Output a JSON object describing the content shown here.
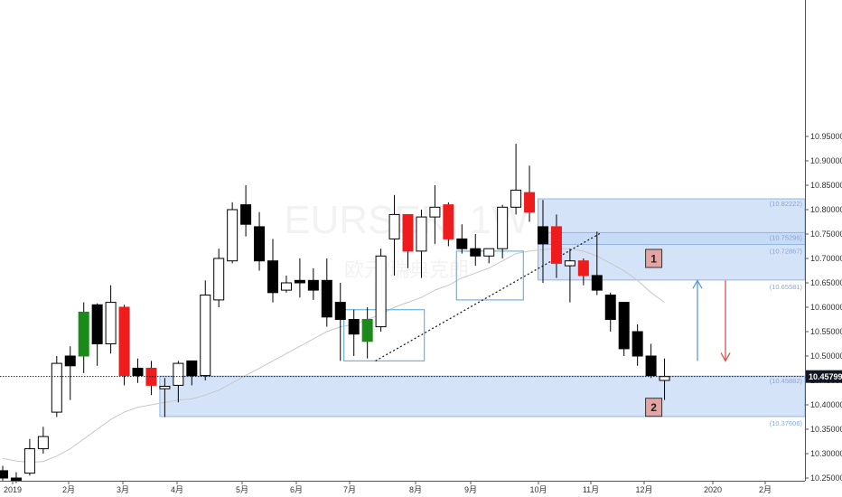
{
  "chart_data": {
    "type": "candlestick",
    "symbol_watermark": "EURSEK, 1W",
    "watermark_sub": "欧元/瑞典克朗",
    "y_ticks": [
      "10.95000",
      "10.90000",
      "10.85000",
      "10.80000",
      "10.75000",
      "10.70000",
      "10.65000",
      "10.60000",
      "10.55000",
      "10.50000",
      "10.45000",
      "10.40000",
      "10.35000",
      "10.30000",
      "10.25000"
    ],
    "x_ticks": [
      "2019",
      "2月",
      "3月",
      "4月",
      "5月",
      "6月",
      "7月",
      "8月",
      "9月",
      "10月",
      "11月",
      "12月",
      "2020",
      "2月"
    ],
    "current_price": "10.45799",
    "colors": {
      "up": "#ffffff",
      "down": "#000000",
      "highlight_up": "#1a8a1a",
      "highlight_down": "#ee1c1c",
      "zone_fill": "#c7d9f5",
      "zone_border": "#93b4e4",
      "ma_line": "#c8c8c8",
      "up_arrow": "#5b9bd5",
      "down_arrow": "#d9534f",
      "box_fill": "#e4a4a4"
    },
    "candles": [
      {
        "o": 10.265,
        "h": 10.275,
        "l": 10.245,
        "c": 10.25,
        "style": "down"
      },
      {
        "o": 10.25,
        "h": 10.262,
        "l": 10.24,
        "c": 10.245,
        "style": "down"
      },
      {
        "o": 10.26,
        "h": 10.33,
        "l": 10.255,
        "c": 10.31,
        "style": "up"
      },
      {
        "o": 10.31,
        "h": 10.355,
        "l": 10.3,
        "c": 10.335,
        "style": "up"
      },
      {
        "o": 10.385,
        "h": 10.5,
        "l": 10.375,
        "c": 10.485,
        "style": "up"
      },
      {
        "o": 10.48,
        "h": 10.52,
        "l": 10.41,
        "c": 10.5,
        "style": "down"
      },
      {
        "o": 10.5,
        "h": 10.61,
        "l": 10.465,
        "c": 10.59,
        "style": "highlight_up"
      },
      {
        "o": 10.605,
        "h": 10.608,
        "l": 10.48,
        "c": 10.525,
        "style": "down"
      },
      {
        "o": 10.525,
        "h": 10.645,
        "l": 10.505,
        "c": 10.61,
        "style": "up"
      },
      {
        "o": 10.6,
        "h": 10.605,
        "l": 10.44,
        "c": 10.46,
        "style": "highlight_down"
      },
      {
        "o": 10.46,
        "h": 10.495,
        "l": 10.445,
        "c": 10.475,
        "style": "down"
      },
      {
        "o": 10.475,
        "h": 10.49,
        "l": 10.42,
        "c": 10.44,
        "style": "highlight_down"
      },
      {
        "o": 10.433,
        "h": 10.455,
        "l": 10.375,
        "c": 10.438,
        "style": "up"
      },
      {
        "o": 10.44,
        "h": 10.49,
        "l": 10.405,
        "c": 10.485,
        "style": "up"
      },
      {
        "o": 10.49,
        "h": 10.49,
        "l": 10.44,
        "c": 10.46,
        "style": "down"
      },
      {
        "o": 10.46,
        "h": 10.655,
        "l": 10.45,
        "c": 10.625,
        "style": "up"
      },
      {
        "o": 10.615,
        "h": 10.72,
        "l": 10.6,
        "c": 10.7,
        "style": "up"
      },
      {
        "o": 10.695,
        "h": 10.815,
        "l": 10.69,
        "c": 10.8,
        "style": "up"
      },
      {
        "o": 10.81,
        "h": 10.85,
        "l": 10.745,
        "c": 10.77,
        "style": "down"
      },
      {
        "o": 10.765,
        "h": 10.795,
        "l": 10.675,
        "c": 10.695,
        "style": "down"
      },
      {
        "o": 10.695,
        "h": 10.74,
        "l": 10.61,
        "c": 10.63,
        "style": "down"
      },
      {
        "o": 10.635,
        "h": 10.665,
        "l": 10.63,
        "c": 10.65,
        "style": "up"
      },
      {
        "o": 10.65,
        "h": 10.7,
        "l": 10.62,
        "c": 10.655,
        "style": "down"
      },
      {
        "o": 10.655,
        "h": 10.68,
        "l": 10.615,
        "c": 10.635,
        "style": "down"
      },
      {
        "o": 10.655,
        "h": 10.7,
        "l": 10.56,
        "c": 10.58,
        "style": "down"
      },
      {
        "o": 10.61,
        "h": 10.65,
        "l": 10.49,
        "c": 10.575,
        "style": "down"
      },
      {
        "o": 10.575,
        "h": 10.595,
        "l": 10.5,
        "c": 10.545,
        "style": "down"
      },
      {
        "o": 10.575,
        "h": 10.6,
        "l": 10.495,
        "c": 10.53,
        "style": "highlight_up"
      },
      {
        "o": 10.56,
        "h": 10.72,
        "l": 10.55,
        "c": 10.705,
        "style": "up"
      },
      {
        "o": 10.74,
        "h": 10.83,
        "l": 10.665,
        "c": 10.79,
        "style": "up"
      },
      {
        "o": 10.79,
        "h": 10.79,
        "l": 10.68,
        "c": 10.715,
        "style": "highlight_down"
      },
      {
        "o": 10.715,
        "h": 10.8,
        "l": 10.66,
        "c": 10.785,
        "style": "up"
      },
      {
        "o": 10.785,
        "h": 10.85,
        "l": 10.73,
        "c": 10.805,
        "style": "up"
      },
      {
        "o": 10.81,
        "h": 10.815,
        "l": 10.725,
        "c": 10.74,
        "style": "highlight_down"
      },
      {
        "o": 10.74,
        "h": 10.77,
        "l": 10.71,
        "c": 10.72,
        "style": "down"
      },
      {
        "o": 10.72,
        "h": 10.75,
        "l": 10.685,
        "c": 10.705,
        "style": "down"
      },
      {
        "o": 10.705,
        "h": 10.72,
        "l": 10.69,
        "c": 10.72,
        "style": "up"
      },
      {
        "o": 10.72,
        "h": 10.81,
        "l": 10.7,
        "c": 10.805,
        "style": "up"
      },
      {
        "o": 10.805,
        "h": 10.935,
        "l": 10.79,
        "c": 10.84,
        "style": "up"
      },
      {
        "o": 10.835,
        "h": 10.89,
        "l": 10.775,
        "c": 10.795,
        "style": "highlight_down"
      },
      {
        "o": 10.765,
        "h": 10.82,
        "l": 10.65,
        "c": 10.73,
        "style": "down"
      },
      {
        "o": 10.765,
        "h": 10.79,
        "l": 10.66,
        "c": 10.69,
        "style": "highlight_down"
      },
      {
        "o": 10.685,
        "h": 10.72,
        "l": 10.61,
        "c": 10.695,
        "style": "up"
      },
      {
        "o": 10.695,
        "h": 10.7,
        "l": 10.645,
        "c": 10.665,
        "style": "highlight_down"
      },
      {
        "o": 10.665,
        "h": 10.755,
        "l": 10.625,
        "c": 10.635,
        "style": "down"
      },
      {
        "o": 10.625,
        "h": 10.63,
        "l": 10.55,
        "c": 10.575,
        "style": "down"
      },
      {
        "o": 10.61,
        "h": 10.61,
        "l": 10.5,
        "c": 10.515,
        "style": "down"
      },
      {
        "o": 10.55,
        "h": 10.565,
        "l": 10.48,
        "c": 10.5,
        "style": "down"
      },
      {
        "o": 10.5,
        "h": 10.525,
        "l": 10.455,
        "c": 10.46,
        "style": "down"
      },
      {
        "o": 10.45,
        "h": 10.495,
        "l": 10.41,
        "c": 10.458,
        "style": "up"
      }
    ],
    "ma": [
      10.29,
      10.285,
      10.282,
      10.284,
      10.295,
      10.31,
      10.33,
      10.35,
      10.37,
      10.385,
      10.395,
      10.4,
      10.405,
      10.41,
      10.412,
      10.42,
      10.43,
      10.445,
      10.46,
      10.475,
      10.49,
      10.505,
      10.52,
      10.535,
      10.55,
      10.56,
      10.565,
      10.575,
      10.585,
      10.6,
      10.61,
      10.62,
      10.635,
      10.645,
      10.66,
      10.67,
      10.68,
      10.695,
      10.71,
      10.715,
      10.718,
      10.72,
      10.72,
      10.715,
      10.705,
      10.69,
      10.675,
      10.655,
      10.63,
      10.61
    ],
    "zones": [
      {
        "top": 10.82222,
        "bottom": 10.65581,
        "start_candle": 40,
        "top_label": "10.82222",
        "bottom_label": "10.65581"
      },
      {
        "top": 10.75296,
        "bottom": 10.72867,
        "start_candle": 40,
        "top_label": "10.75296",
        "bottom_label": "10.72867"
      },
      {
        "top": 10.45882,
        "bottom": 10.37606,
        "start_candle": 12,
        "top_label": "10.45882",
        "bottom_label": "10.37606"
      }
    ],
    "boxes": [
      {
        "label": "1",
        "candle": 48.2,
        "price": 10.7
      },
      {
        "label": "2",
        "candle": 48.2,
        "price": 10.395
      }
    ]
  }
}
